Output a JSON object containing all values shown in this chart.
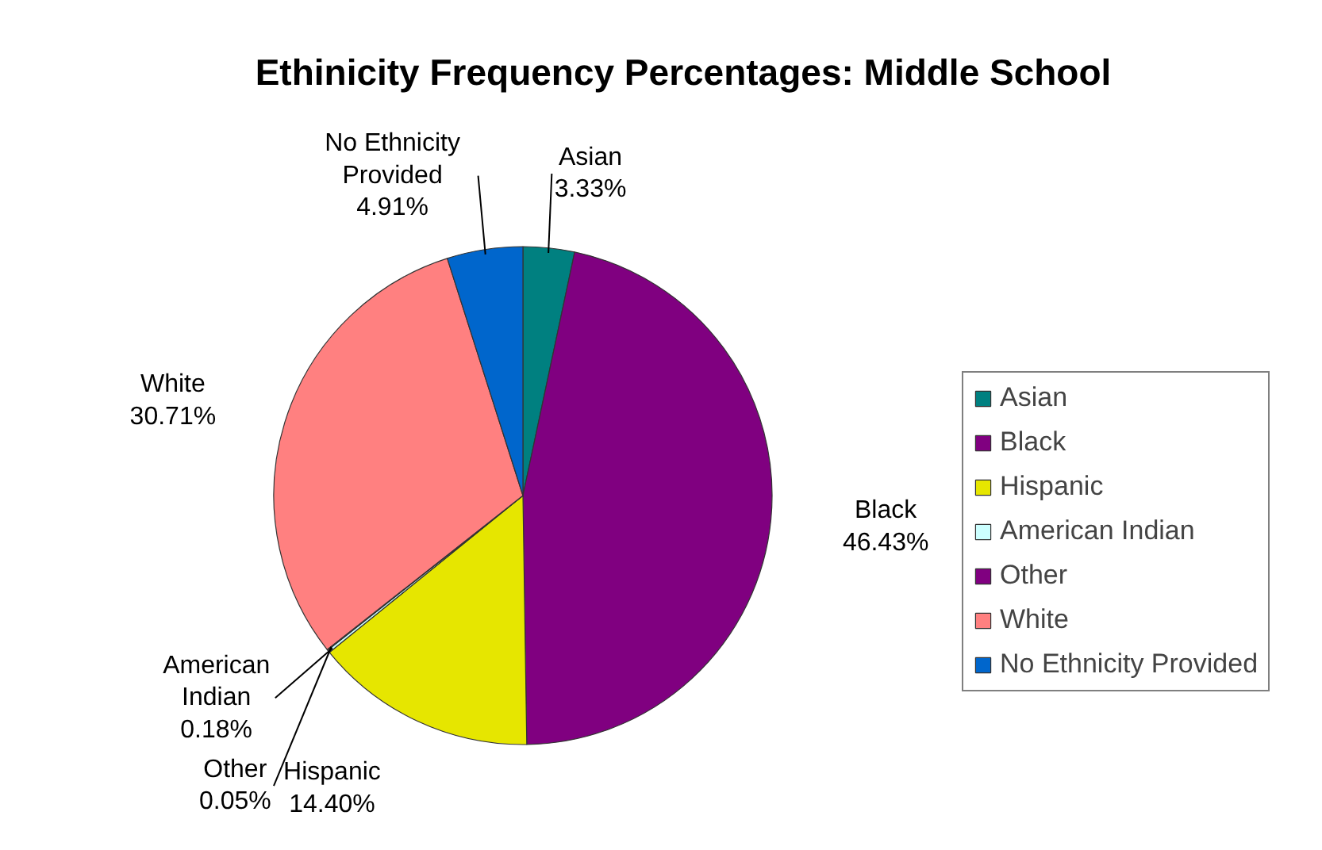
{
  "chart_data": {
    "type": "pie",
    "title": "Ethinicity Frequency Percentages: Middle School",
    "categories": [
      "Asian",
      "Black",
      "Hispanic",
      "American Indian",
      "Other",
      "White",
      "No Ethnicity Provided"
    ],
    "values": [
      3.33,
      46.43,
      14.4,
      0.18,
      0.05,
      30.71,
      4.91
    ],
    "value_labels": [
      "3.33%",
      "46.43%",
      "14.40%",
      "0.18%",
      "0.05%",
      "30.71%",
      "4.91%"
    ],
    "colors": [
      "#008080",
      "#800080",
      "#e6e600",
      "#ccffff",
      "#800080",
      "#ff8080",
      "#0066cc"
    ],
    "legend": "right"
  }
}
